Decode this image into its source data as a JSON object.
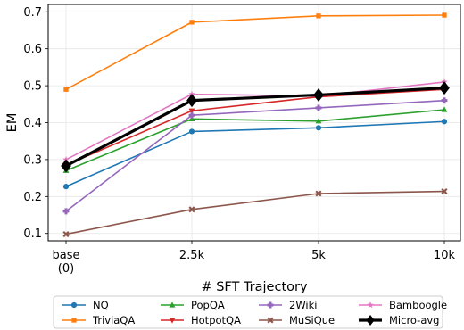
{
  "chart_data": {
    "type": "line",
    "title": "",
    "xlabel": "# SFT Trajectory",
    "ylabel": "EM",
    "categories": [
      [
        "base",
        "(0)"
      ],
      [
        "2.5k"
      ],
      [
        "5k"
      ],
      [
        "10k"
      ]
    ],
    "yticks": [
      "0.1",
      "0.2",
      "0.3",
      "0.4",
      "0.5",
      "0.6",
      "0.7"
    ],
    "ylim": [
      0.08,
      0.72
    ],
    "grid": true,
    "legend_position": "bottom",
    "legend_columns": 4,
    "series": [
      {
        "name": "NQ",
        "color": "#1f77b4",
        "marker": "circle",
        "values": [
          0.227,
          0.376,
          0.386,
          0.403
        ]
      },
      {
        "name": "TriviaQA",
        "color": "#ff7f0e",
        "marker": "square",
        "values": [
          0.49,
          0.672,
          0.689,
          0.691
        ]
      },
      {
        "name": "PopQA",
        "color": "#2ca02c",
        "marker": "triangle-up",
        "values": [
          0.27,
          0.41,
          0.404,
          0.435
        ]
      },
      {
        "name": "HotpotQA",
        "color": "#d62728",
        "marker": "triangle-down",
        "values": [
          0.285,
          0.432,
          0.47,
          0.49
        ]
      },
      {
        "name": "2Wiki",
        "color": "#9467bd",
        "marker": "plus",
        "values": [
          0.16,
          0.42,
          0.44,
          0.46
        ]
      },
      {
        "name": "MuSiQue",
        "color": "#8c564b",
        "marker": "x",
        "values": [
          0.098,
          0.165,
          0.208,
          0.214
        ]
      },
      {
        "name": "Bamboogle",
        "color": "#e377c2",
        "marker": "star",
        "values": [
          0.3,
          0.477,
          0.472,
          0.51
        ]
      },
      {
        "name": "Micro-avg",
        "color": "#000000",
        "marker": "diamond",
        "bold": true,
        "values": [
          0.283,
          0.46,
          0.475,
          0.494
        ]
      }
    ]
  }
}
